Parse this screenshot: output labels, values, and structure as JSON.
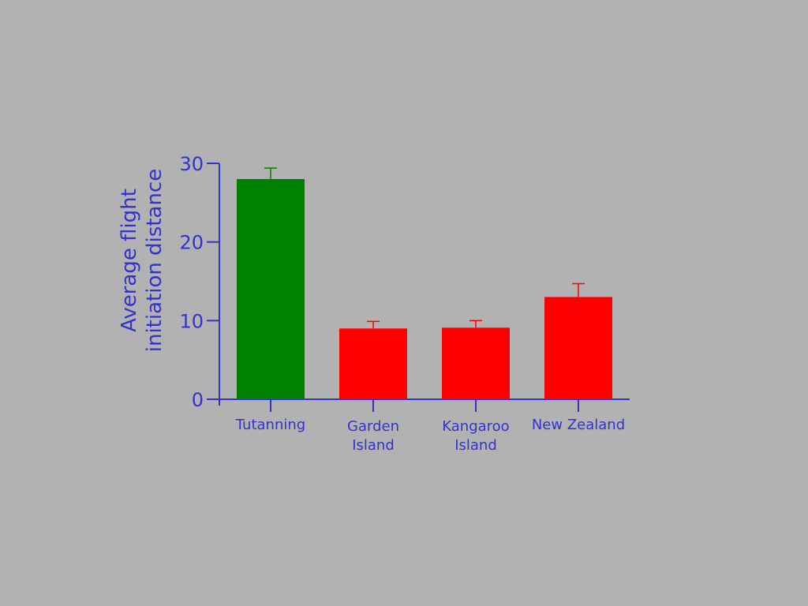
{
  "chart_data": {
    "type": "bar",
    "y_label": "Average flight\ninitiation distance",
    "categories": [
      "Tutanning",
      "Garden\nIsland",
      "Kangaroo\nIsland",
      "New Zealand"
    ],
    "values": [
      28,
      9,
      9.1,
      13
    ],
    "errors": [
      1.4,
      0.9,
      0.9,
      1.7
    ],
    "colors": [
      "#008000",
      "#ff0000",
      "#ff0000",
      "#ff0000"
    ],
    "ylim": [
      0,
      30
    ],
    "yticks": [
      0,
      10,
      20,
      30
    ],
    "grid": false
  }
}
